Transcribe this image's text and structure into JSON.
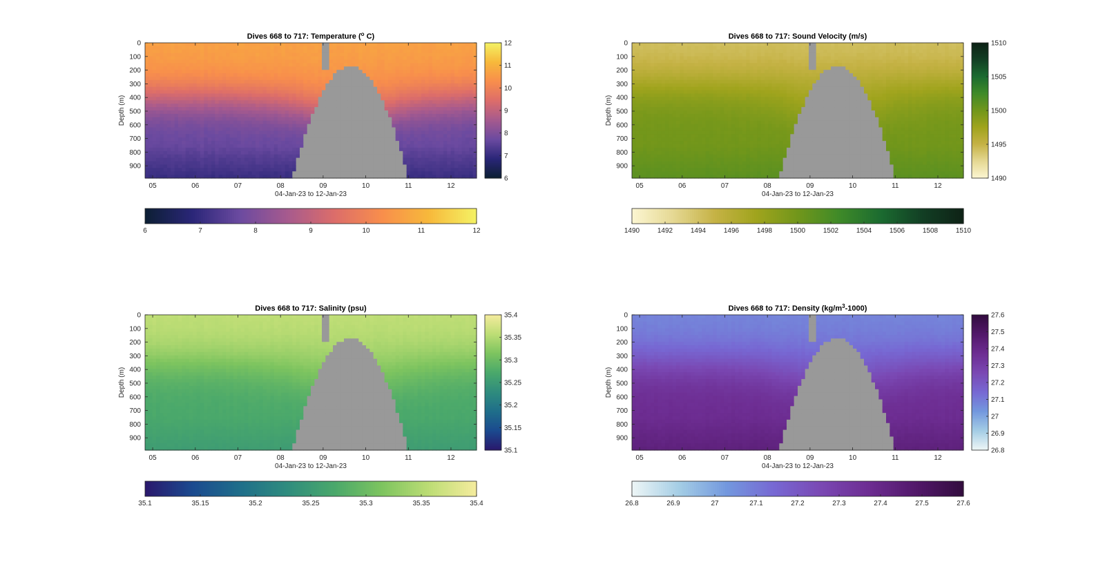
{
  "figure": {
    "background": "#ffffff",
    "nodata_color": "#999999"
  },
  "chart_data": [
    {
      "type": "heatmap",
      "panel": "top-left",
      "title_text": "Dives 668 to 717: Temperature (",
      "title_sup": "o",
      "title_tail": " C)",
      "xlabel": "04-Jan-23 to 12-Jan-23",
      "ylabel": "Depth (m)",
      "xlim": [
        4.82,
        12.6
      ],
      "ylim": [
        0,
        990
      ],
      "x_ticks": [
        5,
        6,
        7,
        8,
        9,
        10,
        11,
        12
      ],
      "x_tick_labels": [
        "05",
        "06",
        "07",
        "08",
        "09",
        "10",
        "11",
        "12"
      ],
      "y_ticks": [
        0,
        100,
        200,
        300,
        400,
        500,
        600,
        700,
        800,
        900
      ],
      "y_tick_labels": [
        "0",
        "100",
        "200",
        "300",
        "400",
        "500",
        "600",
        "700",
        "800",
        "900"
      ],
      "surface_value": 10.7,
      "deep_value": 7.6,
      "transition_depth": 400,
      "colormap": [
        "#0c1f33",
        "#2a2678",
        "#6b4aa0",
        "#a65a8e",
        "#dc6d6a",
        "#f88e4c",
        "#f7b93b",
        "#f4f264"
      ],
      "clim": [
        6,
        12
      ],
      "colorbar_ticks": [
        6,
        7,
        8,
        9,
        10,
        11,
        12
      ],
      "colorbar_tick_labels": [
        "6",
        "7",
        "8",
        "9",
        "10",
        "11",
        "12"
      ],
      "colorbar_right_ticks": [
        6,
        7,
        8,
        9,
        10,
        11,
        12
      ],
      "colorbar_right_tick_labels": [
        "6",
        "7",
        "8",
        "9",
        "10",
        "11",
        "12"
      ]
    },
    {
      "type": "heatmap",
      "panel": "top-right",
      "title_text": "Dives 668 to 717: Sound Velocity (m/s)",
      "xlabel": "04-Jan-23 to 12-Jan-23",
      "ylabel": "Depth (m)",
      "xlim": [
        4.82,
        12.6
      ],
      "ylim": [
        0,
        990
      ],
      "x_ticks": [
        5,
        6,
        7,
        8,
        9,
        10,
        11,
        12
      ],
      "x_tick_labels": [
        "05",
        "06",
        "07",
        "08",
        "09",
        "10",
        "11",
        "12"
      ],
      "y_ticks": [
        0,
        100,
        200,
        300,
        400,
        500,
        600,
        700,
        800,
        900
      ],
      "y_tick_labels": [
        "0",
        "100",
        "200",
        "300",
        "400",
        "500",
        "600",
        "700",
        "800",
        "900"
      ],
      "surface_value": 1494,
      "deep_value": 1500,
      "transition_depth": 300,
      "colormap": [
        "#fcf6d2",
        "#e5d893",
        "#c5b245",
        "#a0a41d",
        "#71961b",
        "#3f8a28",
        "#1b6b30",
        "#123f24",
        "#0e2216"
      ],
      "clim": [
        1490,
        1510
      ],
      "colorbar_ticks": [
        1490,
        1492,
        1494,
        1496,
        1498,
        1500,
        1502,
        1504,
        1506,
        1508,
        1510
      ],
      "colorbar_tick_labels": [
        "1490",
        "1492",
        "1494",
        "1496",
        "1498",
        "1500",
        "1502",
        "1504",
        "1506",
        "1508",
        "1510"
      ],
      "colorbar_right_ticks": [
        1490,
        1495,
        1500,
        1505,
        1510
      ],
      "colorbar_right_tick_labels": [
        "1490",
        "1495",
        "1500",
        "1505",
        "1510"
      ]
    },
    {
      "type": "heatmap",
      "panel": "bottom-left",
      "title_text": "Dives 668 to 717: Salinity (psu)",
      "xlabel": "04-Jan-23 to 12-Jan-23",
      "ylabel": "Depth (m)",
      "xlim": [
        4.82,
        12.6
      ],
      "ylim": [
        0,
        990
      ],
      "x_ticks": [
        5,
        6,
        7,
        8,
        9,
        10,
        11,
        12
      ],
      "x_tick_labels": [
        "05",
        "06",
        "07",
        "08",
        "09",
        "10",
        "11",
        "12"
      ],
      "y_ticks": [
        0,
        100,
        200,
        300,
        400,
        500,
        600,
        700,
        800,
        900
      ],
      "y_tick_labels": [
        "0",
        "100",
        "200",
        "300",
        "400",
        "500",
        "600",
        "700",
        "800",
        "900"
      ],
      "surface_value": 35.36,
      "deep_value": 35.27,
      "transition_depth": 350,
      "colormap": [
        "#2a186c",
        "#1b4a8f",
        "#1f6e8a",
        "#2f8c7e",
        "#4aa86b",
        "#7dc45f",
        "#bddd75",
        "#f5ec9e"
      ],
      "clim": [
        35.1,
        35.4
      ],
      "colorbar_ticks": [
        35.1,
        35.15,
        35.2,
        35.25,
        35.3,
        35.35,
        35.4
      ],
      "colorbar_tick_labels": [
        "35.1",
        "35.15",
        "35.2",
        "35.25",
        "35.3",
        "35.35",
        "35.4"
      ],
      "colorbar_right_ticks": [
        35.1,
        35.15,
        35.2,
        35.25,
        35.3,
        35.35,
        35.4
      ],
      "colorbar_right_tick_labels": [
        "35.1",
        "35.15",
        "35.2",
        "35.25",
        "35.3",
        "35.35",
        "35.4"
      ]
    },
    {
      "type": "heatmap",
      "panel": "bottom-right",
      "title_text": "Dives 668 to 717: Density (kg/m",
      "title_sup": "3",
      "title_tail": "-1000)",
      "xlabel": "04-Jan-23 to 12-Jan-23",
      "ylabel": "Depth (m)",
      "xlim": [
        4.82,
        12.6
      ],
      "ylim": [
        0,
        990
      ],
      "x_ticks": [
        5,
        6,
        7,
        8,
        9,
        10,
        11,
        12
      ],
      "x_tick_labels": [
        "05",
        "06",
        "07",
        "08",
        "09",
        "10",
        "11",
        "12"
      ],
      "y_ticks": [
        0,
        100,
        200,
        300,
        400,
        500,
        600,
        700,
        800,
        900
      ],
      "y_tick_labels": [
        "0",
        "100",
        "200",
        "300",
        "400",
        "500",
        "600",
        "700",
        "800",
        "900"
      ],
      "surface_value": 27.07,
      "deep_value": 27.38,
      "transition_depth": 350,
      "colormap": [
        "#eef6f6",
        "#a4cde5",
        "#7398de",
        "#7768d3",
        "#7a48b3",
        "#6d2d92",
        "#52186a",
        "#320c3e"
      ],
      "clim": [
        26.8,
        27.6
      ],
      "colorbar_ticks": [
        26.8,
        26.9,
        27.0,
        27.1,
        27.2,
        27.3,
        27.4,
        27.5,
        27.6
      ],
      "colorbar_tick_labels": [
        "26.8",
        "26.9",
        "27",
        "27.1",
        "27.2",
        "27.3",
        "27.4",
        "27.5",
        "27.6"
      ],
      "colorbar_right_ticks": [
        26.8,
        26.9,
        27.0,
        27.1,
        27.2,
        27.3,
        27.4,
        27.5,
        27.6
      ],
      "colorbar_right_tick_labels": [
        "26.8",
        "26.9",
        "27",
        "27.1",
        "27.2",
        "27.3",
        "27.4",
        "27.5",
        "27.6"
      ]
    }
  ]
}
